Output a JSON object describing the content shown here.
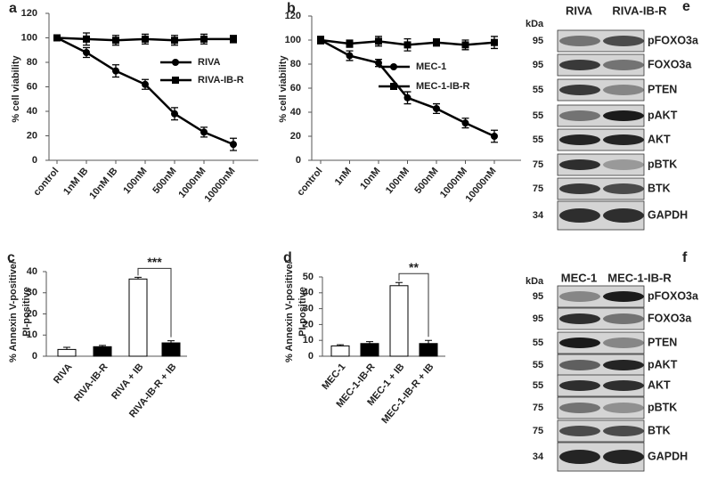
{
  "chart_data": [
    {
      "type": "line",
      "panel_label": "a",
      "y_label": "% cell viability",
      "categories": [
        "control",
        "1nM IB",
        "10nM IB",
        "100nM",
        "500nM",
        "1000nM",
        "10000nM"
      ],
      "ylim": [
        0,
        120
      ],
      "yticks": [
        0,
        20,
        40,
        60,
        80,
        100,
        120
      ],
      "series": [
        {
          "name": "RIVA",
          "color": "#000000",
          "marker": "circle",
          "values": [
            100,
            88,
            73,
            62,
            38,
            23,
            13
          ],
          "errors": [
            2,
            4,
            5,
            4,
            5,
            4,
            5
          ]
        },
        {
          "name": "RIVA-IB-R",
          "color": "#000000",
          "marker": "square",
          "values": [
            100,
            99,
            98,
            99,
            98,
            99,
            99
          ],
          "errors": [
            2,
            5,
            4,
            4,
            4,
            4,
            3
          ]
        }
      ]
    },
    {
      "type": "line",
      "panel_label": "b",
      "y_label": "% cell viability",
      "categories": [
        "control",
        "1nM",
        "10nM",
        "100nM",
        "500nM",
        "1000nM",
        "10000nM"
      ],
      "ylim": [
        0,
        120
      ],
      "yticks": [
        0,
        20,
        40,
        60,
        80,
        100,
        120
      ],
      "series": [
        {
          "name": "MEC-1",
          "color": "#000000",
          "marker": "circle",
          "values": [
            100,
            87,
            81,
            52,
            43,
            31,
            20
          ],
          "errors": [
            3,
            4,
            3,
            5,
            4,
            4,
            5
          ]
        },
        {
          "name": "MEC-1-IB-R",
          "color": "#000000",
          "marker": "square",
          "values": [
            100,
            97,
            99,
            96,
            98,
            96,
            98
          ],
          "errors": [
            3,
            3,
            4,
            5,
            3,
            4,
            5
          ]
        }
      ]
    },
    {
      "type": "bar",
      "panel_label": "c",
      "y_label": [
        "% Annexin V-positive/",
        "PI-positive"
      ],
      "categories": [
        "RIVA",
        "RIVA-IB-R",
        "RIVA + IB",
        "RIVA-IB-R + IB"
      ],
      "values": [
        3.2,
        4.5,
        36.5,
        6.3
      ],
      "errors": [
        1,
        0.6,
        0.8,
        1
      ],
      "colors": [
        "#ffffff",
        "#000000",
        "#ffffff",
        "#000000"
      ],
      "ylim": [
        0,
        40
      ],
      "yticks": [
        0,
        10,
        20,
        30,
        40
      ],
      "annotation": "***"
    },
    {
      "type": "bar",
      "panel_label": "d",
      "y_label": [
        "% Annexin V-positive/",
        "PI-positive"
      ],
      "categories": [
        "MEC-1",
        "MEC-1-IB-R",
        "MEC-1 + IB",
        "MEC-1-IB-R + IB"
      ],
      "values": [
        6.5,
        8,
        44.5,
        8
      ],
      "errors": [
        0.7,
        1.2,
        2,
        2
      ],
      "colors": [
        "#ffffff",
        "#000000",
        "#ffffff",
        "#000000"
      ],
      "ylim": [
        0,
        50
      ],
      "yticks": [
        0,
        10,
        20,
        30,
        40,
        50
      ],
      "annotation": "**"
    }
  ],
  "blots": [
    {
      "panel_label": "e",
      "unit": "kDa",
      "columns": [
        "RIVA",
        "RIVA-IB-R"
      ],
      "rows": [
        {
          "marker": "95",
          "protein": "pFOXO3a"
        },
        {
          "marker": "95",
          "protein": "FOXO3a"
        },
        {
          "marker": "55",
          "protein": "PTEN"
        },
        {
          "marker": "55",
          "protein": "pAKT"
        },
        {
          "marker": "55",
          "protein": "AKT"
        },
        {
          "marker": "75",
          "protein": "pBTK"
        },
        {
          "marker": "75",
          "protein": "BTK"
        },
        {
          "marker": "34",
          "protein": "GAPDH"
        }
      ]
    },
    {
      "panel_label": "f",
      "unit": "kDa",
      "columns": [
        "MEC-1",
        "MEC-1-IB-R"
      ],
      "rows": [
        {
          "marker": "95",
          "protein": "pFOXO3a"
        },
        {
          "marker": "95",
          "protein": "FOXO3a"
        },
        {
          "marker": "55",
          "protein": "PTEN"
        },
        {
          "marker": "55",
          "protein": "pAKT"
        },
        {
          "marker": "55",
          "protein": "AKT"
        },
        {
          "marker": "75",
          "protein": "pBTK"
        },
        {
          "marker": "75",
          "protein": "BTK"
        },
        {
          "marker": "34",
          "protein": "GAPDH"
        }
      ]
    }
  ]
}
